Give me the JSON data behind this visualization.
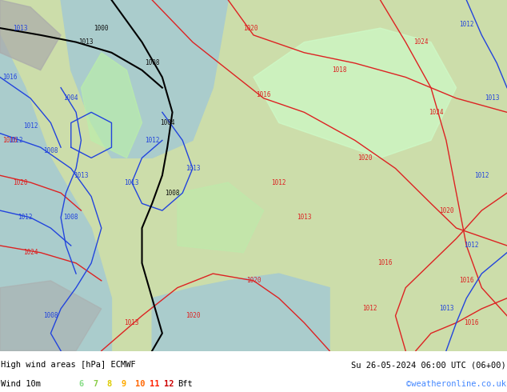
{
  "title_left": "High wind areas [hPa] ECMWF",
  "title_right": "Su 26-05-2024 06:00 UTC (06+00)",
  "subtitle_left": "Wind 10m",
  "legend_labels": [
    "6",
    "7",
    "8",
    "9",
    "10",
    "11",
    "12",
    "Bft"
  ],
  "legend_colors": [
    "#aaffaa",
    "#88dd44",
    "#ffdd00",
    "#ffaa00",
    "#ff6600",
    "#ff2200",
    "#cc0000",
    "#000000"
  ],
  "copyright": "©weatheronline.co.uk",
  "bg_color": "#aaddaa",
  "map_bg": "#88cc88",
  "border_color": "#000000",
  "text_color": "#000000",
  "subtitle_color": "#000000",
  "copyright_color": "#4488ff",
  "figwidth": 6.34,
  "figheight": 4.9,
  "dpi": 100,
  "bottom_bar_height": 0.105,
  "bottom_bar_color": "#ffffff",
  "isobar_red_color": "#dd2222",
  "isobar_blue_color": "#2244dd",
  "isobar_black_color": "#000000",
  "land_color": "#ccddaa",
  "sea_color": "#aacccc",
  "high_wind_color": "#ccffcc"
}
